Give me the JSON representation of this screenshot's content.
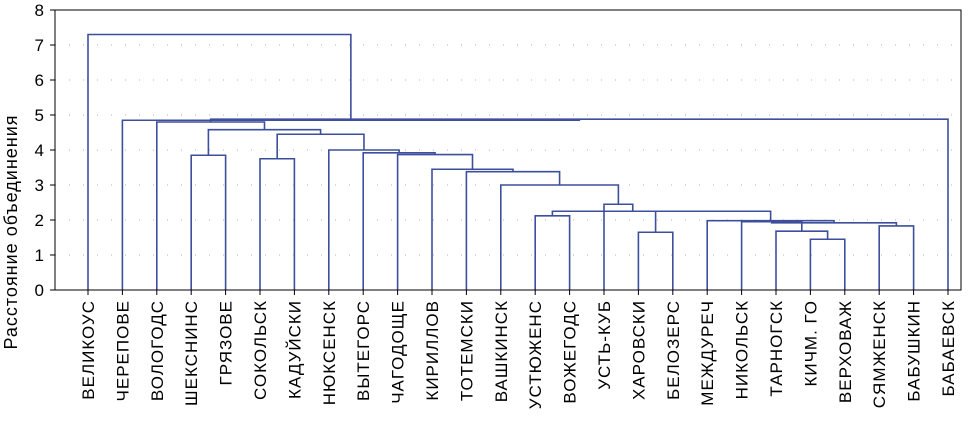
{
  "chart_data": {
    "type": "dendrogram",
    "ylabel": "Расстояние объединения",
    "ylim": [
      0,
      8
    ],
    "yticks": [
      0,
      1,
      2,
      3,
      4,
      5,
      6,
      7,
      8
    ],
    "grid": true,
    "leaves": [
      "ВЕЛИКОУС",
      "ЧЕРЕПОВЕ",
      "ВОЛОГОДС",
      "ШЕКСНИНС",
      "ГРЯЗОВЕ",
      "СОКОЛЬСК",
      "КАДУЙСКИ",
      "НЮКСЕНСК",
      "ВЫТЕГОРС",
      "ЧАГОДОЩЕ",
      "КИРИЛЛОВ",
      "ТОТЕМСКИ",
      "ВАШКИНСК",
      "УСТЮЖЕНС",
      "ВОЖЕГОДС",
      "УСТЬ-КУБ",
      "ХАРОВСКИ",
      "БЕЛОЗЕРС",
      "МЕЖДУРЕЧ",
      "НИКОЛЬСК",
      "ТАРНОГСК",
      "КИЧМ. ГО",
      "ВЕРХОВАЖ",
      "СЯМЖЕНСК",
      "БАБУШКИН",
      "БАБАЕВСК"
    ],
    "merges": [
      {
        "id": "c1",
        "left": "КИЧМ. ГО",
        "right": "ВЕРХОВАЖ",
        "height": 1.45
      },
      {
        "id": "c2",
        "left": "ХАРОВСКИ",
        "right": "БЕЛОЗЕРС",
        "height": 1.65
      },
      {
        "id": "c3",
        "left": "ТАРНОГСК",
        "right": "c1",
        "height": 1.68
      },
      {
        "id": "c4",
        "left": "СЯМЖЕНСК",
        "right": "БАБУШКИН",
        "height": 1.83
      },
      {
        "id": "c5",
        "left": "НИКОЛЬСК",
        "right": "c3",
        "height": 1.95
      },
      {
        "id": "c6",
        "left": "c5",
        "right": "c4",
        "height": 1.92
      },
      {
        "id": "c7",
        "left": "МЕЖДУРЕЧ",
        "right": "c6",
        "height": 1.98
      },
      {
        "id": "c8",
        "left": "c2",
        "right": "c7",
        "height": 2.25
      },
      {
        "id": "c9",
        "left": "УСТЮЖЕНС",
        "right": "ВОЖЕГОДС",
        "height": 2.12
      },
      {
        "id": "c10",
        "left": "c9",
        "right": "c8",
        "height": 2.25
      },
      {
        "id": "c11",
        "left": "УСТЬ-КУБ",
        "right": "c10",
        "height": 2.45
      },
      {
        "id": "c12",
        "left": "ВАШКИНСК",
        "right": "c11",
        "height": 3.0
      },
      {
        "id": "c13",
        "left": "ТОТЕМСКИ",
        "right": "c12",
        "height": 3.38
      },
      {
        "id": "c14",
        "left": "КИРИЛЛОВ",
        "right": "c13",
        "height": 3.45
      },
      {
        "id": "c15",
        "left": "ЧАГОДОЩЕ",
        "right": "c14",
        "height": 3.87
      },
      {
        "id": "c16",
        "left": "ВЫТЕГОРС",
        "right": "c15",
        "height": 3.92
      },
      {
        "id": "c17",
        "left": "НЮКСЕНСК",
        "right": "c16",
        "height": 4.0
      },
      {
        "id": "c18",
        "left": "СОКОЛЬСК",
        "right": "КАДУЙСКИ",
        "height": 3.75
      },
      {
        "id": "c19",
        "left": "c18",
        "right": "c17",
        "height": 4.45
      },
      {
        "id": "c20",
        "left": "ШЕКСНИНС",
        "right": "ГРЯЗОВЕ",
        "height": 3.85
      },
      {
        "id": "c21",
        "left": "c20",
        "right": "c19",
        "height": 4.58
      },
      {
        "id": "c22",
        "left": "ВОЛОГОДС",
        "right": "c21",
        "height": 4.8
      },
      {
        "id": "c23",
        "left": "c22",
        "right": "БАБАЕВСК",
        "height": 4.88
      },
      {
        "id": "c24",
        "left": "ЧЕРЕПОВЕ",
        "right": "c23",
        "height": 4.85
      },
      {
        "id": "c25",
        "left": "ВЕЛИКОУС",
        "right": "c24",
        "height": 7.3
      }
    ]
  }
}
